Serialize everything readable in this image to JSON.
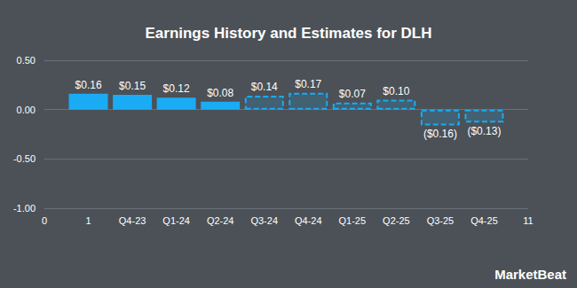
{
  "chart_data": {
    "type": "bar",
    "title": "Earnings History and Estimates for DLH",
    "x": [
      1,
      2,
      3,
      4,
      5,
      6,
      7,
      8,
      9,
      10
    ],
    "series": [
      {
        "color": "#1aabf5",
        "line_style": "solid",
        "values": [
          0.16,
          0.15,
          0.12,
          0.08,
          null,
          null,
          null,
          null,
          null,
          null
        ],
        "value_labels": [
          "$0.16",
          "$0.15",
          "$0.12",
          "$0.08",
          null,
          null,
          null,
          null,
          null,
          null
        ]
      },
      {
        "color": "#1aabf5",
        "line_style": "dashed",
        "values": [
          null,
          null,
          null,
          null,
          0.14,
          0.17,
          0.07,
          0.1,
          -0.16,
          -0.13
        ],
        "value_labels": [
          null,
          null,
          null,
          null,
          "$0.14",
          "$0.17",
          "$0.07",
          "$0.10",
          "($0.16)",
          "($0.13)"
        ]
      }
    ],
    "xlim": [
      0,
      11
    ],
    "xticks": [
      0,
      1,
      {
        "value": 2,
        "label": "Q4-23"
      },
      {
        "value": 3,
        "label": "Q1-24"
      },
      {
        "value": 4,
        "label": "Q2-24"
      },
      {
        "value": 5,
        "label": "Q3-24"
      },
      {
        "value": 6,
        "label": "Q4-24"
      },
      {
        "value": 7,
        "label": "Q1-25"
      },
      {
        "value": 8,
        "label": "Q2-25"
      },
      {
        "value": 9,
        "label": "Q3-25"
      },
      {
        "value": 10,
        "label": "Q4-25"
      },
      11
    ],
    "ylim": [
      -1,
      0.5
    ],
    "yticks": [
      {
        "value": -1,
        "label": "-1.00"
      },
      {
        "value": -0.5,
        "label": "-0.50"
      },
      {
        "value": 0,
        "label": "0.00"
      },
      {
        "value": 0.5,
        "label": "0.50"
      }
    ],
    "grid": true,
    "data_labels": true,
    "annotations": [
      "MarketBeat"
    ]
  }
}
